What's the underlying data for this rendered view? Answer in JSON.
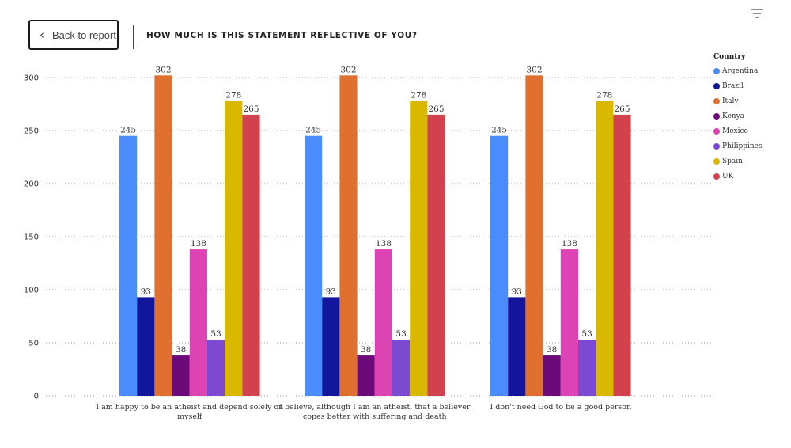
{
  "header": {
    "back_label": "Back to report",
    "title": "HOW MUCH IS THIS STATEMENT REFLECTIVE OF YOU?"
  },
  "icons": {
    "back": "chevron-left-icon",
    "filter": "filter-icon"
  },
  "legend": {
    "title": "Country",
    "placement": "right"
  },
  "chart_data": {
    "type": "bar",
    "categories": [
      [
        "I am happy to be an atheist and depend solely on",
        "myself"
      ],
      [
        "I believe, although I am an atheist, that a believer",
        "copes better with suffering and death"
      ],
      [
        "I don't need God to be a good person"
      ]
    ],
    "series": [
      {
        "name": "Argentina",
        "color": "#4a8cfb",
        "values": [
          245,
          245,
          245
        ]
      },
      {
        "name": "Brazil",
        "color": "#12169c",
        "values": [
          93,
          93,
          93
        ]
      },
      {
        "name": "Italy",
        "color": "#e07030",
        "values": [
          302,
          302,
          302
        ]
      },
      {
        "name": "Kenya",
        "color": "#6b0a78",
        "values": [
          38,
          38,
          38
        ]
      },
      {
        "name": "Mexico",
        "color": "#dc44b4",
        "values": [
          138,
          138,
          138
        ]
      },
      {
        "name": "Philippines",
        "color": "#7b4ad0",
        "values": [
          53,
          53,
          53
        ]
      },
      {
        "name": "Spain",
        "color": "#d8b800",
        "values": [
          278,
          278,
          278
        ]
      },
      {
        "name": "UK",
        "color": "#d1424e",
        "values": [
          265,
          265,
          265
        ]
      }
    ],
    "ylim": [
      0,
      300
    ],
    "yticks": [
      0,
      50,
      100,
      150,
      200,
      250,
      300
    ],
    "grid": true,
    "xlabel": "",
    "ylabel": ""
  }
}
